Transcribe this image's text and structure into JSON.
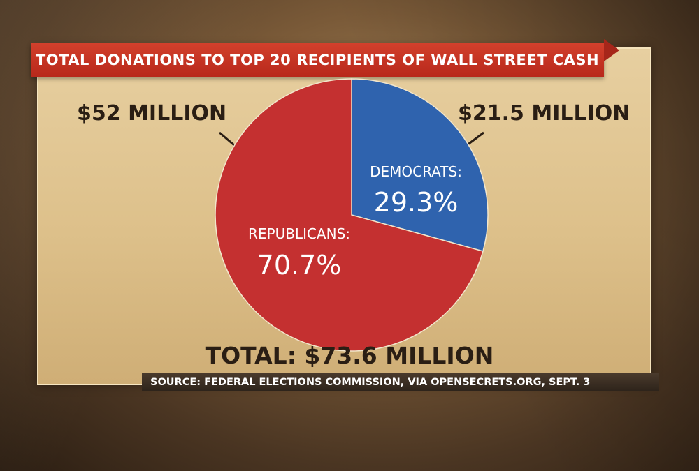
{
  "chart_data": {
    "type": "pie",
    "title": "TOTAL DONATIONS TO TOP 20 RECIPIENTS OF WALL STREET CASH",
    "slices": [
      {
        "name": "DEMOCRATS:",
        "percent_label": "29.3%",
        "value": 29.3,
        "amount_label": "$21.5 MILLION",
        "color": "#2f63ae"
      },
      {
        "name": "REPUBLICANS:",
        "percent_label": "70.7%",
        "value": 70.7,
        "amount_label": "$52 MILLION",
        "color": "#c43030"
      }
    ],
    "total_label": "TOTAL:  $73.6 MILLION",
    "source": "SOURCE: FEDERAL ELECTIONS COMMISSION, VIA OPENSECRETS.ORG, SEPT. 3"
  }
}
